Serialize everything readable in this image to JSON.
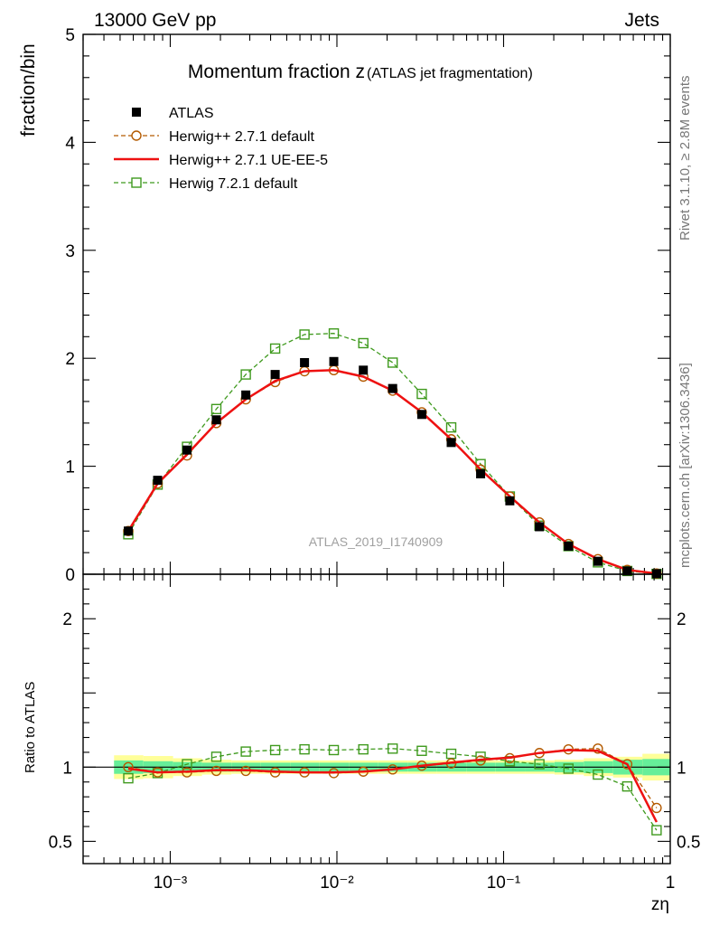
{
  "header": {
    "left": "13000 GeV pp",
    "right": "Jets"
  },
  "side_labels": {
    "rivet": "Rivet 3.1.10, ≥ 2.8M events",
    "mcplots": "mcplots.cern.ch [arXiv:1306.3436]"
  },
  "chart_data": [
    {
      "type": "scatter",
      "panel": "main",
      "title": "Momentum fraction z",
      "title_sub": "(ATLAS jet fragmentation)",
      "ylabel": "fraction/bin",
      "watermark": "ATLAS_2019_I1740909",
      "x_scale": "log",
      "xlim": [
        0.0003,
        1
      ],
      "ylim": [
        0,
        5
      ],
      "y_ticks": [
        "0",
        "1",
        "2",
        "3",
        "4",
        "5"
      ],
      "legend_position": "top-left",
      "x": [
        0.00056,
        0.00084,
        0.00126,
        0.00189,
        0.00284,
        0.00426,
        0.00639,
        0.00958,
        0.0144,
        0.0216,
        0.0323,
        0.0485,
        0.0728,
        0.109,
        0.164,
        0.245,
        0.368,
        0.552,
        0.828
      ],
      "series": [
        {
          "name": "ATLAS",
          "style": "data",
          "color": "#000000",
          "values": [
            0.4,
            0.87,
            1.15,
            1.43,
            1.66,
            1.85,
            1.96,
            1.97,
            1.89,
            1.72,
            1.48,
            1.22,
            0.93,
            0.68,
            0.44,
            0.26,
            0.12,
            0.03,
            0.005
          ]
        },
        {
          "name": "Herwig++ 2.7.1 default",
          "style": "dashed-circle",
          "color": "#b35a00",
          "values": [
            0.4,
            0.84,
            1.1,
            1.4,
            1.62,
            1.78,
            1.88,
            1.89,
            1.83,
            1.7,
            1.5,
            1.25,
            0.97,
            0.72,
            0.48,
            0.28,
            0.14,
            0.04,
            0.007
          ]
        },
        {
          "name": "Herwig++ 2.7.1 UE-EE-5",
          "style": "solid",
          "color": "#ee1111",
          "values": [
            0.4,
            0.84,
            1.11,
            1.4,
            1.62,
            1.79,
            1.88,
            1.89,
            1.83,
            1.7,
            1.5,
            1.25,
            0.97,
            0.72,
            0.48,
            0.28,
            0.14,
            0.04,
            0.006
          ]
        },
        {
          "name": "Herwig 7.2.1 default",
          "style": "dashed-square",
          "color": "#3f9a1e",
          "values": [
            0.37,
            0.83,
            1.18,
            1.53,
            1.85,
            2.09,
            2.22,
            2.23,
            2.14,
            1.96,
            1.67,
            1.36,
            1.02,
            0.72,
            0.45,
            0.26,
            0.11,
            0.03,
            0.003
          ]
        }
      ]
    },
    {
      "type": "line",
      "panel": "ratio",
      "ylabel": "Ratio to ATLAS",
      "xlabel": "zη",
      "x_scale": "log",
      "xlim": [
        0.0003,
        1
      ],
      "ylim": [
        0.35,
        2.3
      ],
      "y_ticks": [
        "0.5",
        "1",
        "2"
      ],
      "x_ticks": [
        "10⁻³",
        "10⁻²",
        "10⁻¹",
        "1"
      ],
      "reference": 1,
      "x": [
        0.00056,
        0.00084,
        0.00126,
        0.00189,
        0.00284,
        0.00426,
        0.00639,
        0.00958,
        0.0144,
        0.0216,
        0.0323,
        0.0485,
        0.0728,
        0.109,
        0.164,
        0.245,
        0.368,
        0.552,
        0.828
      ],
      "bands": {
        "bin_edges": [
          0.00046,
          0.00069,
          0.00104,
          0.00155,
          0.00233,
          0.0035,
          0.00525,
          0.00787,
          0.0118,
          0.0177,
          0.0266,
          0.0399,
          0.0598,
          0.0897,
          0.135,
          0.202,
          0.303,
          0.454,
          0.681,
          1.0
        ],
        "stat_color": "#66ee99",
        "total_color": "#ffff99",
        "stat_half_width": [
          0.045,
          0.04,
          0.035,
          0.03,
          0.03,
          0.03,
          0.03,
          0.03,
          0.03,
          0.03,
          0.03,
          0.03,
          0.03,
          0.03,
          0.03,
          0.035,
          0.04,
          0.05,
          0.055
        ],
        "total_half_width": [
          0.08,
          0.075,
          0.06,
          0.05,
          0.045,
          0.045,
          0.045,
          0.045,
          0.045,
          0.045,
          0.045,
          0.045,
          0.045,
          0.045,
          0.045,
          0.05,
          0.06,
          0.07,
          0.09
        ]
      },
      "series": [
        {
          "name": "Herwig++ 2.7.1 default",
          "style": "dashed-circle",
          "color": "#b35a00",
          "values": [
            1.0,
            0.965,
            0.965,
            0.975,
            0.975,
            0.965,
            0.965,
            0.96,
            0.97,
            0.985,
            1.01,
            1.025,
            1.045,
            1.06,
            1.095,
            1.12,
            1.125,
            1.02,
            0.725
          ]
        },
        {
          "name": "Herwig++ 2.7.1 UE-EE-5",
          "style": "solid",
          "color": "#ee1111",
          "values": [
            0.99,
            0.965,
            0.97,
            0.98,
            0.98,
            0.97,
            0.965,
            0.965,
            0.97,
            0.985,
            1.01,
            1.03,
            1.05,
            1.065,
            1.095,
            1.115,
            1.11,
            1.02,
            0.63
          ]
        },
        {
          "name": "Herwig 7.2.1 default",
          "style": "dashed-square",
          "color": "#3f9a1e",
          "values": [
            0.925,
            0.96,
            1.02,
            1.07,
            1.105,
            1.115,
            1.12,
            1.115,
            1.12,
            1.125,
            1.11,
            1.09,
            1.07,
            1.04,
            1.02,
            0.99,
            0.95,
            0.87,
            0.575
          ]
        }
      ]
    }
  ]
}
